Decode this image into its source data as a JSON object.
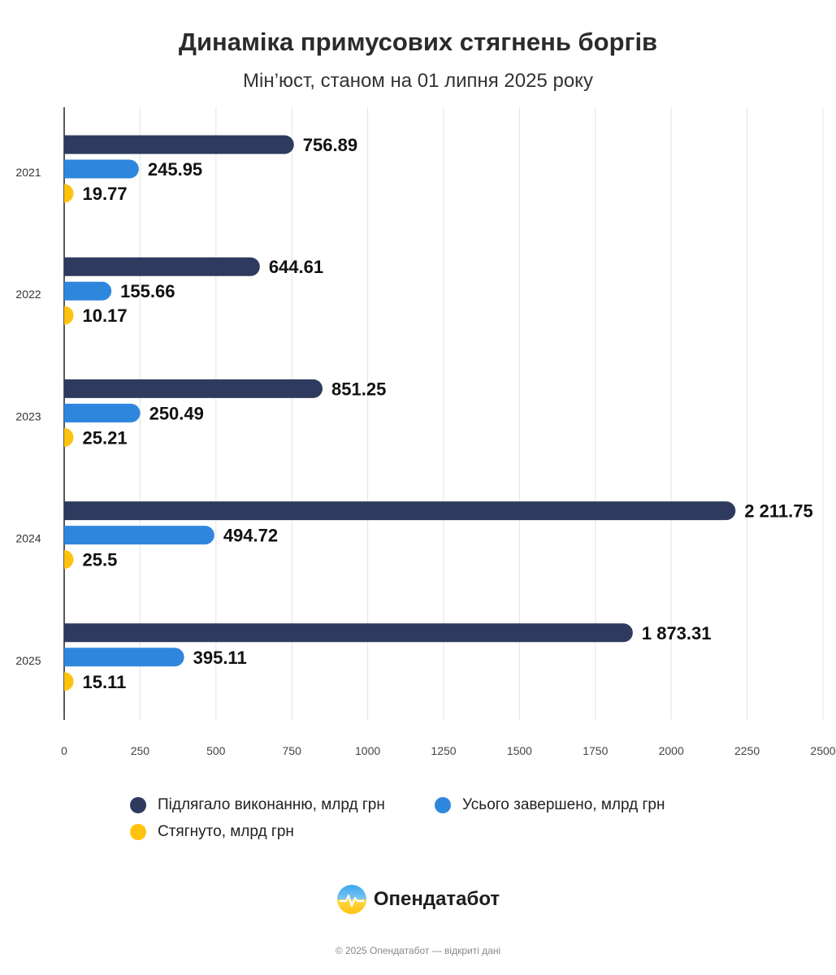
{
  "chart_data": {
    "type": "bar",
    "orientation": "horizontal",
    "title": "Динаміка примусових стягнень боргів",
    "subtitle": "Мін’юст, станом на 01 липня 2025 року",
    "categories": [
      "2021",
      "2022",
      "2023",
      "2024",
      "2025"
    ],
    "series": [
      {
        "name": "Підлягало виконанню, млрд грн",
        "color": "#2e3b5e",
        "values": [
          756.89,
          644.61,
          851.25,
          2211.75,
          1873.31
        ],
        "labels": [
          "756.89",
          "644.61",
          "851.25",
          "2 211.75",
          "1 873.31"
        ]
      },
      {
        "name": "Усього завершено, млрд грн",
        "color": "#2f86dd",
        "values": [
          245.95,
          155.66,
          250.49,
          494.72,
          395.11
        ],
        "labels": [
          "245.95",
          "155.66",
          "250.49",
          "494.72",
          "395.11"
        ]
      },
      {
        "name": "Стягнуто, млрд грн",
        "color": "#ffc20e",
        "values": [
          19.77,
          10.17,
          25.21,
          25.5,
          15.11
        ],
        "labels": [
          "19.77",
          "10.17",
          "25.21",
          "25.5",
          "15.11"
        ]
      }
    ],
    "xticks": [
      "0",
      "250",
      "500",
      "750",
      "1000",
      "1250",
      "1500",
      "1750",
      "2000",
      "2250",
      "2500"
    ],
    "xlim": [
      0,
      2500
    ],
    "grid": true,
    "legend_position": "bottom"
  },
  "brand": {
    "name": "Опендатабот",
    "logo_icon": "opendatabot-logo-icon"
  },
  "footer": {
    "text": "© 2025 Опендатабот — відкриті дані"
  }
}
